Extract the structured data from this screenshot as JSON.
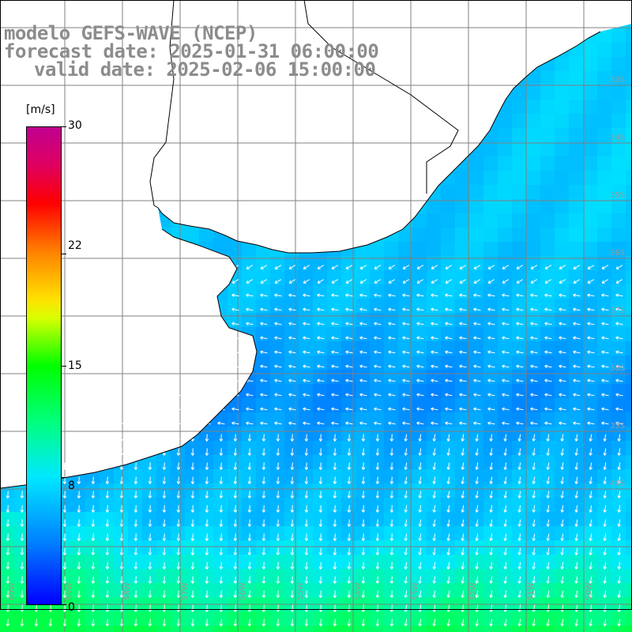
{
  "header": {
    "line1": "modelo GEFS-WAVE (NCEP)",
    "line2": "forecast date: 2025-01-31 06:00:00",
    "line3": "valid date: 2025-02-06 15:00:00"
  },
  "colorbar": {
    "unit": "[m/s]",
    "ticks": [
      "30",
      "22",
      "15",
      "8",
      "0"
    ],
    "tick_values": [
      30,
      22,
      15,
      8,
      0
    ],
    "range": [
      0,
      30
    ]
  },
  "map": {
    "lat_labels": [
      "33S",
      "34S",
      "35S",
      "36S",
      "37S",
      "38S",
      "39S",
      "40S"
    ],
    "lon_labels": [
      "60W",
      "59W",
      "58W",
      "57W",
      "56W",
      "55W",
      "54W",
      "53W",
      "52W",
      "51W",
      "50W"
    ],
    "colors": {
      "land": "#ffffff",
      "coast": "#000000",
      "grid": "#808080",
      "arrows": "#ffffff",
      "label": "#9a9a9a"
    }
  }
}
